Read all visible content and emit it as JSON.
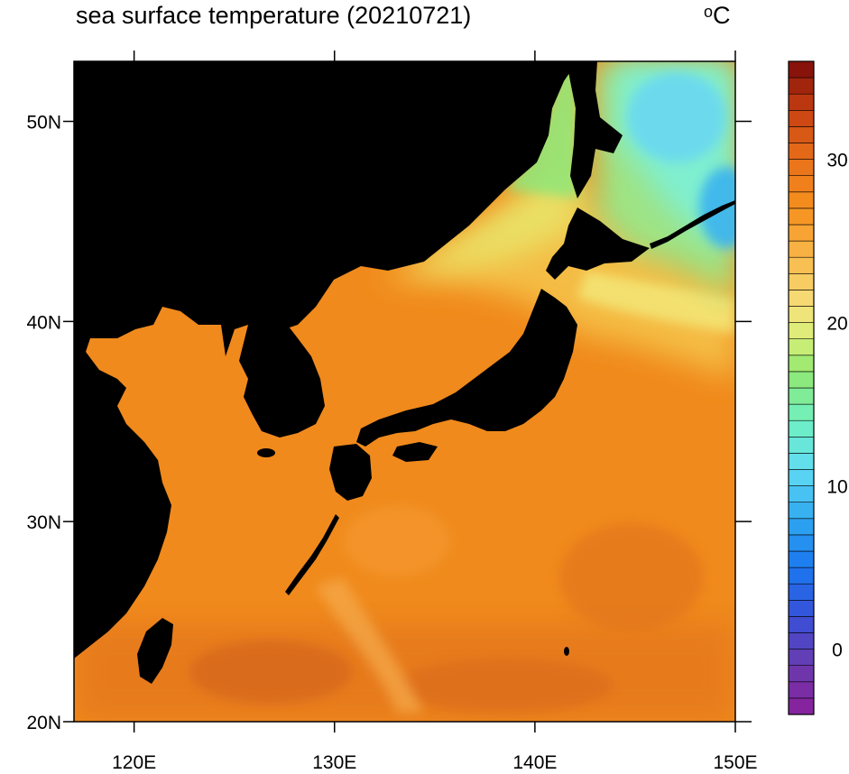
{
  "title": "sea surface temperature (20210721)",
  "units_prefix": "o",
  "units_symbol": "C",
  "map": {
    "lon_range": [
      117,
      150
    ],
    "lat_range": [
      20,
      53
    ],
    "lon_ticks": [
      {
        "value": 120,
        "label": "120E"
      },
      {
        "value": 130,
        "label": "130E"
      },
      {
        "value": 140,
        "label": "140E"
      },
      {
        "value": 150,
        "label": "150E"
      }
    ],
    "lat_ticks": [
      {
        "value": 50,
        "label": "50N"
      },
      {
        "value": 40,
        "label": "40N"
      },
      {
        "value": 30,
        "label": "30N"
      },
      {
        "value": 20,
        "label": "20N"
      }
    ],
    "land_color": "#000000",
    "dominant_sea_color": "#f08a1c"
  },
  "colorbar": {
    "min": -4,
    "max": 36,
    "step": 1,
    "labeled_values": [
      {
        "value": 30,
        "label": "30"
      },
      {
        "value": 20,
        "label": "20"
      },
      {
        "value": 10,
        "label": "10"
      },
      {
        "value": 0,
        "label": "0"
      }
    ]
  }
}
